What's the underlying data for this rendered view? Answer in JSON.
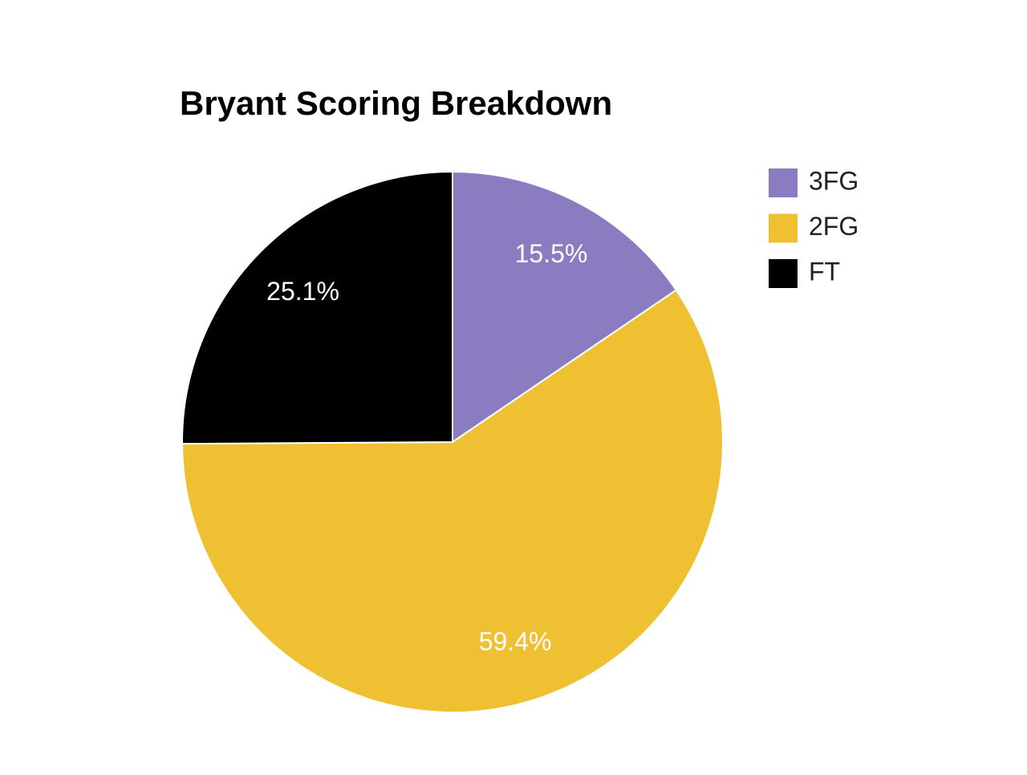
{
  "chart_data": {
    "type": "pie",
    "title": "Bryant Scoring Breakdown",
    "categories": [
      "3FG",
      "2FG",
      "FT"
    ],
    "values": [
      15.5,
      59.4,
      25.1
    ],
    "value_labels": [
      "15.5%",
      "59.4%",
      "25.1%"
    ],
    "colors": [
      "#8b7bc1",
      "#efc132",
      "#000000"
    ],
    "legend": "right"
  }
}
